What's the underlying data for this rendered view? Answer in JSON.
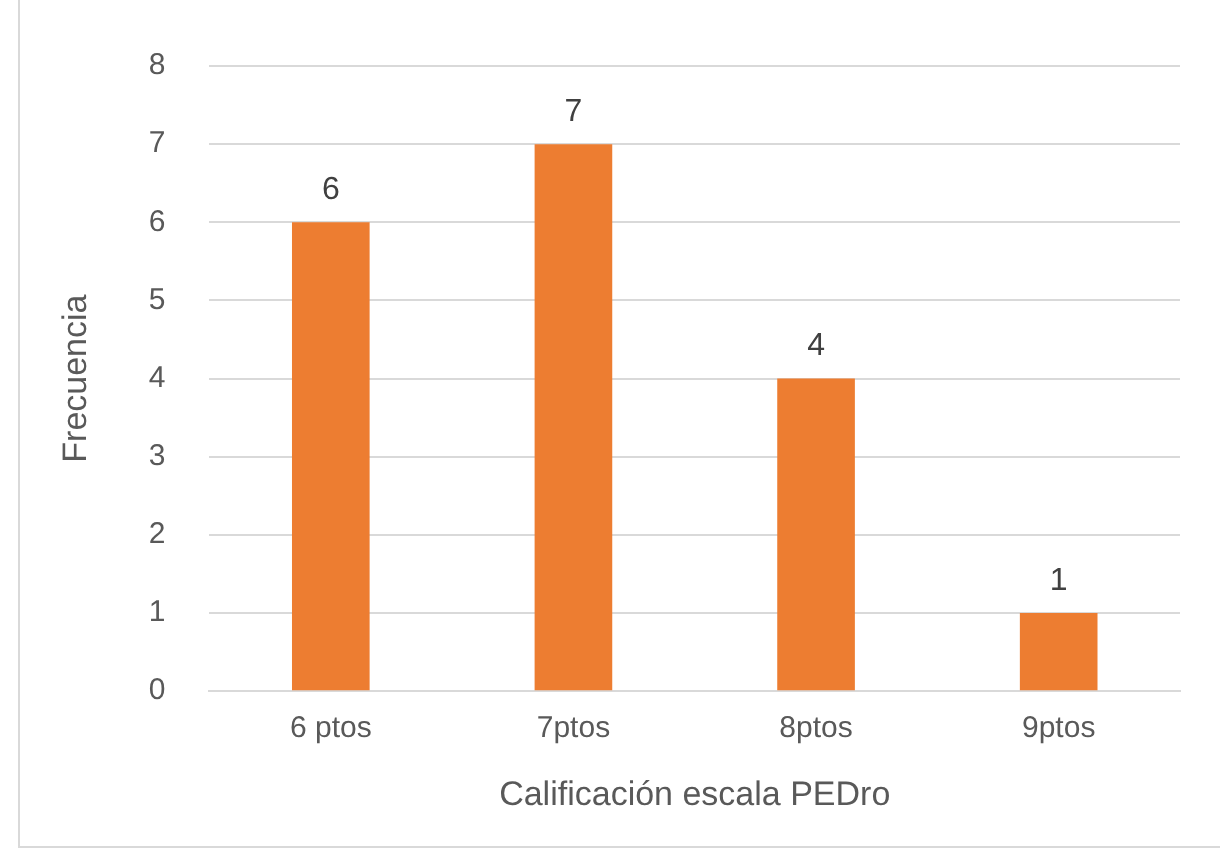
{
  "chart_data": {
    "type": "bar",
    "xlabel": "Calificación escala PEDro",
    "ylabel": "Frecuencia",
    "categories": [
      "6 ptos",
      "7ptos",
      "8ptos",
      "9ptos"
    ],
    "values": [
      6,
      7,
      4,
      1
    ],
    "color": "#ed7d31",
    "ylim": [
      0,
      8
    ],
    "yticks": [
      0,
      1,
      2,
      3,
      4,
      5,
      6,
      7,
      8
    ],
    "grid": "y",
    "data_labels": true
  }
}
